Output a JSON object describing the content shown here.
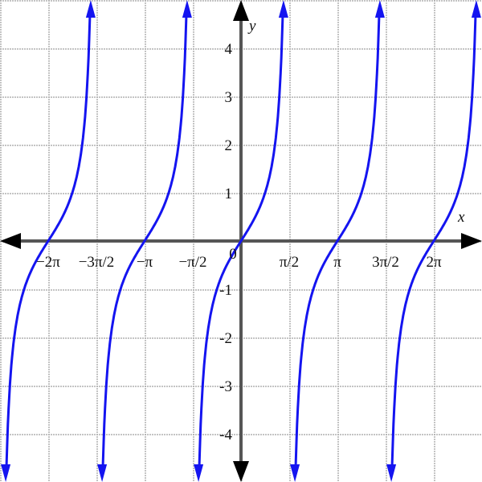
{
  "chart_data": {
    "type": "line",
    "function": "y = tan(x)",
    "xlabel": "x",
    "ylabel": "y",
    "xlim": [
      -7.854,
      7.854
    ],
    "ylim": [
      -5,
      5
    ],
    "grid": true,
    "x_ticks": [
      {
        "value": -6.2832,
        "label": "−2π"
      },
      {
        "value": -4.7124,
        "label": "−3π/2"
      },
      {
        "value": -3.1416,
        "label": "−π"
      },
      {
        "value": -1.5708,
        "label": "−π/2"
      },
      {
        "value": 0,
        "label": "0"
      },
      {
        "value": 1.5708,
        "label": "π/2"
      },
      {
        "value": 3.1416,
        "label": "π"
      },
      {
        "value": 4.7124,
        "label": "3π/2"
      },
      {
        "value": 6.2832,
        "label": "2π"
      }
    ],
    "y_ticks": [
      {
        "value": 4,
        "label": "4"
      },
      {
        "value": 3,
        "label": "3"
      },
      {
        "value": 2,
        "label": "2"
      },
      {
        "value": 1,
        "label": "1"
      },
      {
        "value": -1,
        "label": "-1"
      },
      {
        "value": -2,
        "label": "-2"
      },
      {
        "value": -3,
        "label": "-3"
      },
      {
        "value": -4,
        "label": "-4"
      }
    ],
    "branch_centers": [
      -6.2832,
      -3.1416,
      0,
      3.1416,
      6.2832
    ],
    "colors": {
      "curve": "#1414f0",
      "axis": "#555555",
      "grid": "#b0b0b0"
    }
  }
}
